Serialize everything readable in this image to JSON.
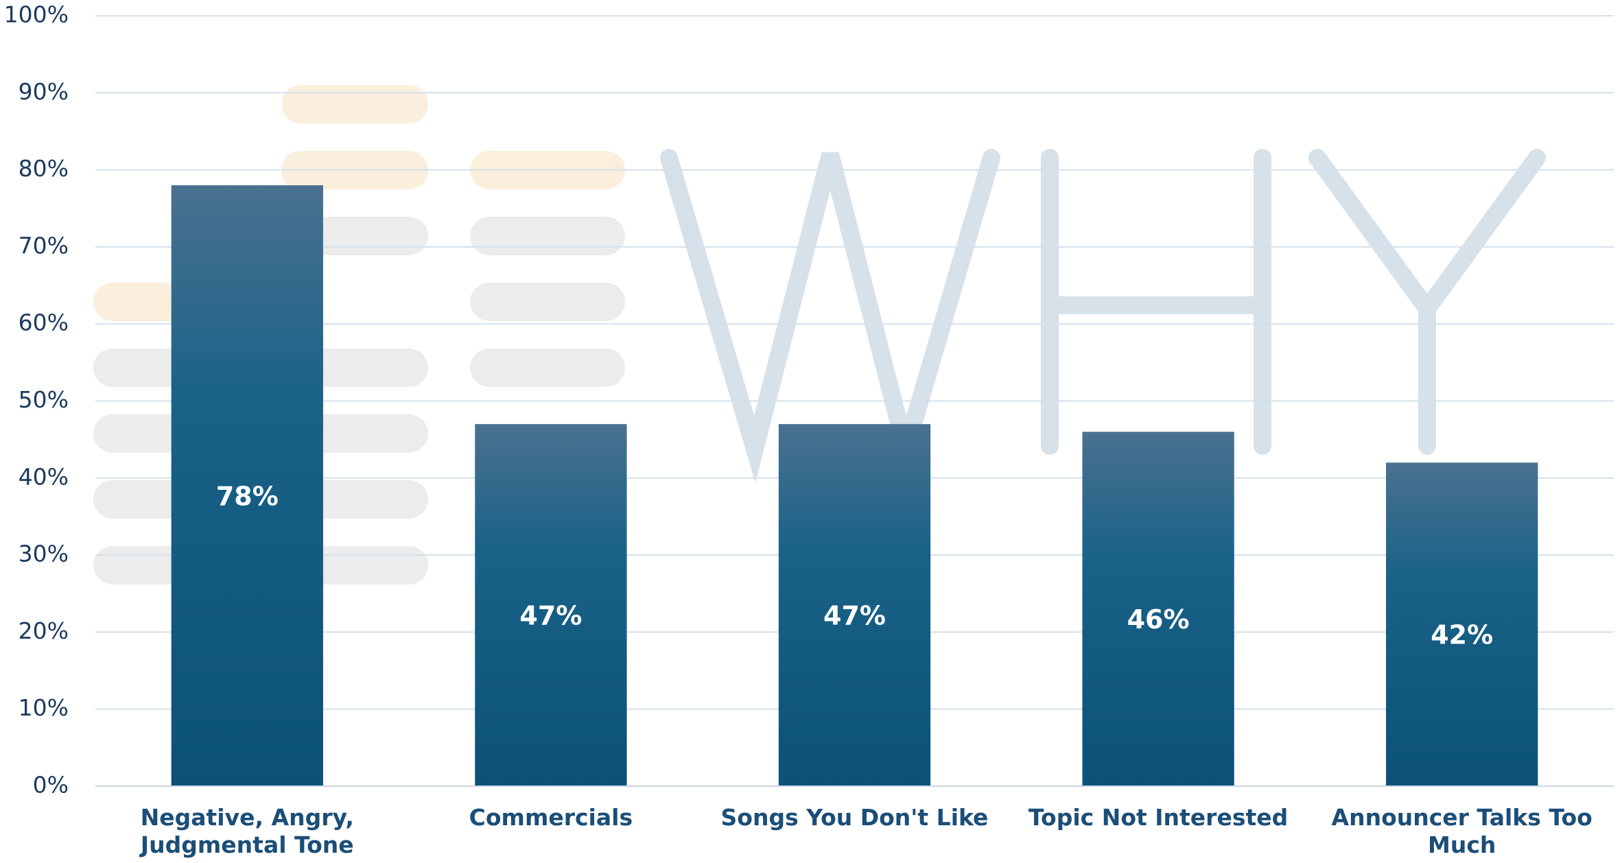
{
  "chart_data": {
    "type": "bar",
    "categories": [
      "Negative, Angry, Judgmental Tone",
      "Commercials",
      "Songs You Don't Like",
      "Topic Not Interested",
      "Announcer Talks Too Much"
    ],
    "values": [
      78,
      47,
      47,
      46,
      42
    ],
    "value_labels": [
      "78%",
      "47%",
      "47%",
      "46%",
      "42%"
    ],
    "color": "#0f5a82",
    "ylim": [
      0,
      100
    ],
    "yticks": [
      {
        "value": 0,
        "label": "0%"
      },
      {
        "value": 10,
        "label": "10%"
      },
      {
        "value": 20,
        "label": "20%"
      },
      {
        "value": 30,
        "label": "30%"
      },
      {
        "value": 40,
        "label": "40%"
      },
      {
        "value": 50,
        "label": "50%"
      },
      {
        "value": 60,
        "label": "60%"
      },
      {
        "value": 70,
        "label": "70%"
      },
      {
        "value": 80,
        "label": "80%"
      },
      {
        "value": 90,
        "label": "90%"
      },
      {
        "value": 100,
        "label": "100%"
      }
    ],
    "grid": true
  }
}
